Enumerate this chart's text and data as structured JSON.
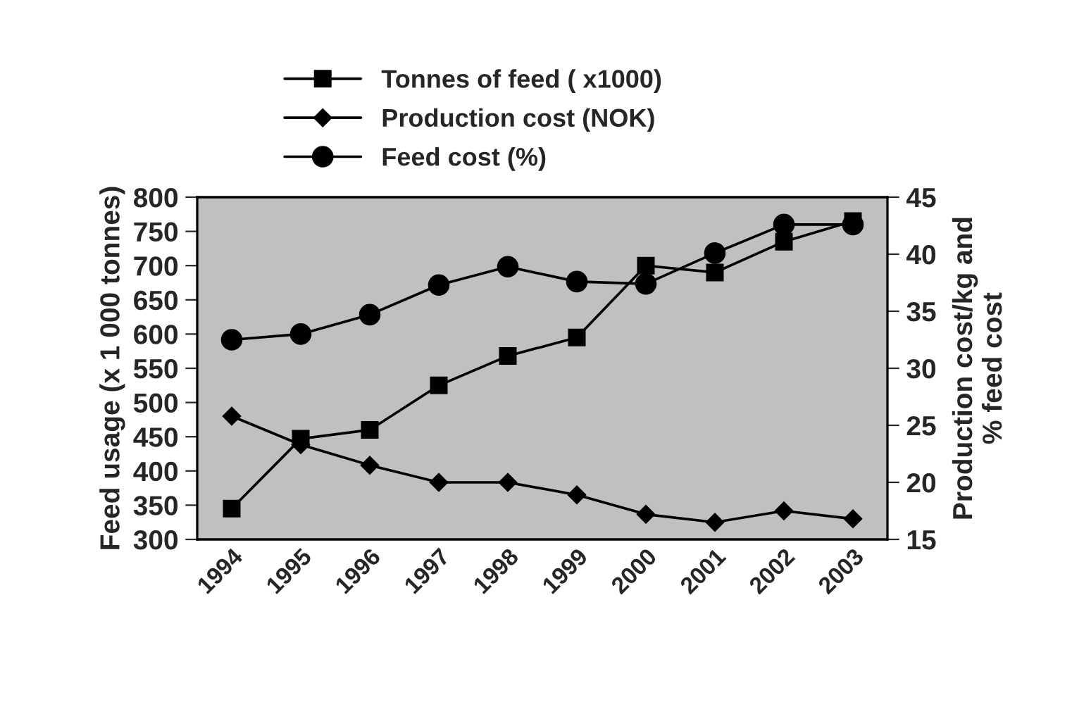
{
  "chart_data": {
    "type": "line",
    "ylabel": "Feed usage (x 1 000 tonnes)",
    "y2label": "Production cost/kg and\n% feed cost",
    "categories": [
      "1994",
      "1995",
      "1996",
      "1997",
      "1998",
      "1999",
      "2000",
      "2001",
      "2002",
      "2003"
    ],
    "series": [
      {
        "name": "Tonnes of feed ( x1000)",
        "color": "#000000",
        "marker": "square",
        "values": [
          345,
          447,
          460,
          525,
          568,
          595,
          700,
          690,
          735,
          765
        ]
      },
      {
        "name": "Production cost (NOK)",
        "color": "#000000",
        "marker": "diamond",
        "axis": "y2",
        "values": [
          25.8,
          23.3,
          21.5,
          20.0,
          20.0,
          18.9,
          17.2,
          16.5,
          17.5,
          16.8
        ]
      },
      {
        "name": "Feed cost (%)",
        "color": "#000000",
        "marker": "circle",
        "axis": "y2",
        "values": [
          32.5,
          33.0,
          34.7,
          37.3,
          38.9,
          37.6,
          37.4,
          40.1,
          42.6,
          42.6
        ]
      }
    ],
    "ylim": [
      300,
      800
    ],
    "yticks": [
      300,
      350,
      400,
      450,
      500,
      550,
      600,
      650,
      700,
      750,
      800
    ],
    "y2lim": [
      15,
      45
    ],
    "y2ticks": [
      15,
      20,
      25,
      30,
      35,
      40,
      45
    ],
    "grid": false,
    "legend": "top",
    "line_style": "solid"
  }
}
